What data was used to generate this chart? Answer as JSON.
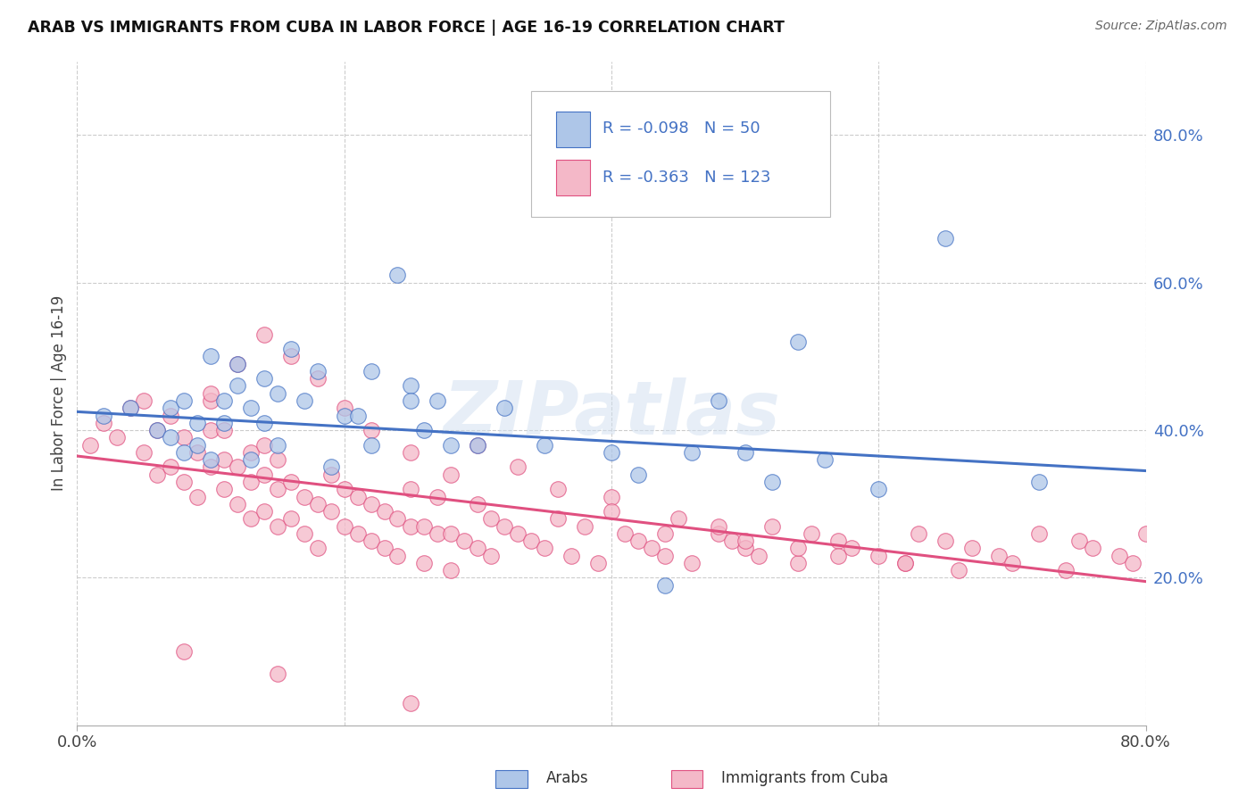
{
  "title": "ARAB VS IMMIGRANTS FROM CUBA IN LABOR FORCE | AGE 16-19 CORRELATION CHART",
  "source": "Source: ZipAtlas.com",
  "ylabel": "In Labor Force | Age 16-19",
  "x_range": [
    0.0,
    0.8
  ],
  "y_range": [
    0.0,
    0.9
  ],
  "y_ticks": [
    0.2,
    0.4,
    0.6,
    0.8
  ],
  "y_tick_labels": [
    "20.0%",
    "40.0%",
    "60.0%",
    "80.0%"
  ],
  "legend_arab_r": "-0.098",
  "legend_arab_n": "50",
  "legend_cuba_r": "-0.363",
  "legend_cuba_n": "123",
  "arab_fill_color": "#aec6e8",
  "cuba_fill_color": "#f4b8c8",
  "arab_edge_color": "#4472c4",
  "cuba_edge_color": "#e05080",
  "arab_line_color": "#4472c4",
  "cuba_line_color": "#e05080",
  "label_color": "#4472c4",
  "watermark": "ZIPatlas",
  "arab_scatter_x": [
    0.02,
    0.04,
    0.06,
    0.07,
    0.07,
    0.08,
    0.08,
    0.09,
    0.09,
    0.1,
    0.1,
    0.11,
    0.11,
    0.12,
    0.12,
    0.13,
    0.13,
    0.14,
    0.14,
    0.15,
    0.15,
    0.16,
    0.17,
    0.18,
    0.19,
    0.2,
    0.21,
    0.22,
    0.22,
    0.24,
    0.25,
    0.25,
    0.26,
    0.27,
    0.28,
    0.3,
    0.32,
    0.35,
    0.4,
    0.42,
    0.44,
    0.46,
    0.48,
    0.5,
    0.52,
    0.54,
    0.56,
    0.6,
    0.65,
    0.72
  ],
  "arab_scatter_y": [
    0.42,
    0.43,
    0.4,
    0.39,
    0.43,
    0.37,
    0.44,
    0.38,
    0.41,
    0.36,
    0.5,
    0.41,
    0.44,
    0.46,
    0.49,
    0.36,
    0.43,
    0.41,
    0.47,
    0.38,
    0.45,
    0.51,
    0.44,
    0.48,
    0.35,
    0.42,
    0.42,
    0.38,
    0.48,
    0.61,
    0.46,
    0.44,
    0.4,
    0.44,
    0.38,
    0.38,
    0.43,
    0.38,
    0.37,
    0.34,
    0.19,
    0.37,
    0.44,
    0.37,
    0.33,
    0.52,
    0.36,
    0.32,
    0.66,
    0.33
  ],
  "cuba_scatter_x": [
    0.01,
    0.02,
    0.03,
    0.04,
    0.05,
    0.05,
    0.06,
    0.06,
    0.07,
    0.07,
    0.08,
    0.08,
    0.09,
    0.09,
    0.1,
    0.1,
    0.1,
    0.11,
    0.11,
    0.11,
    0.12,
    0.12,
    0.13,
    0.13,
    0.13,
    0.14,
    0.14,
    0.14,
    0.15,
    0.15,
    0.15,
    0.16,
    0.16,
    0.17,
    0.17,
    0.18,
    0.18,
    0.19,
    0.19,
    0.2,
    0.2,
    0.21,
    0.21,
    0.22,
    0.22,
    0.23,
    0.23,
    0.24,
    0.24,
    0.25,
    0.25,
    0.26,
    0.26,
    0.27,
    0.27,
    0.28,
    0.28,
    0.29,
    0.3,
    0.3,
    0.31,
    0.31,
    0.32,
    0.33,
    0.34,
    0.35,
    0.36,
    0.37,
    0.38,
    0.39,
    0.4,
    0.41,
    0.42,
    0.43,
    0.44,
    0.45,
    0.46,
    0.48,
    0.49,
    0.5,
    0.51,
    0.52,
    0.54,
    0.55,
    0.57,
    0.58,
    0.6,
    0.62,
    0.63,
    0.65,
    0.67,
    0.69,
    0.7,
    0.72,
    0.74,
    0.75,
    0.76,
    0.78,
    0.79,
    0.8,
    0.1,
    0.12,
    0.14,
    0.16,
    0.18,
    0.2,
    0.22,
    0.25,
    0.28,
    0.3,
    0.33,
    0.36,
    0.4,
    0.44,
    0.48,
    0.5,
    0.54,
    0.57,
    0.62,
    0.66,
    0.08,
    0.15,
    0.25
  ],
  "cuba_scatter_y": [
    0.38,
    0.41,
    0.39,
    0.43,
    0.37,
    0.44,
    0.34,
    0.4,
    0.35,
    0.42,
    0.33,
    0.39,
    0.31,
    0.37,
    0.35,
    0.4,
    0.44,
    0.32,
    0.36,
    0.4,
    0.3,
    0.35,
    0.28,
    0.33,
    0.37,
    0.29,
    0.34,
    0.38,
    0.27,
    0.32,
    0.36,
    0.28,
    0.33,
    0.26,
    0.31,
    0.24,
    0.3,
    0.29,
    0.34,
    0.27,
    0.32,
    0.26,
    0.31,
    0.25,
    0.3,
    0.24,
    0.29,
    0.23,
    0.28,
    0.27,
    0.32,
    0.22,
    0.27,
    0.26,
    0.31,
    0.21,
    0.26,
    0.25,
    0.3,
    0.24,
    0.23,
    0.28,
    0.27,
    0.26,
    0.25,
    0.24,
    0.28,
    0.23,
    0.27,
    0.22,
    0.31,
    0.26,
    0.25,
    0.24,
    0.23,
    0.28,
    0.22,
    0.26,
    0.25,
    0.24,
    0.23,
    0.27,
    0.22,
    0.26,
    0.25,
    0.24,
    0.23,
    0.22,
    0.26,
    0.25,
    0.24,
    0.23,
    0.22,
    0.26,
    0.21,
    0.25,
    0.24,
    0.23,
    0.22,
    0.26,
    0.45,
    0.49,
    0.53,
    0.5,
    0.47,
    0.43,
    0.4,
    0.37,
    0.34,
    0.38,
    0.35,
    0.32,
    0.29,
    0.26,
    0.27,
    0.25,
    0.24,
    0.23,
    0.22,
    0.21,
    0.1,
    0.07,
    0.03
  ]
}
